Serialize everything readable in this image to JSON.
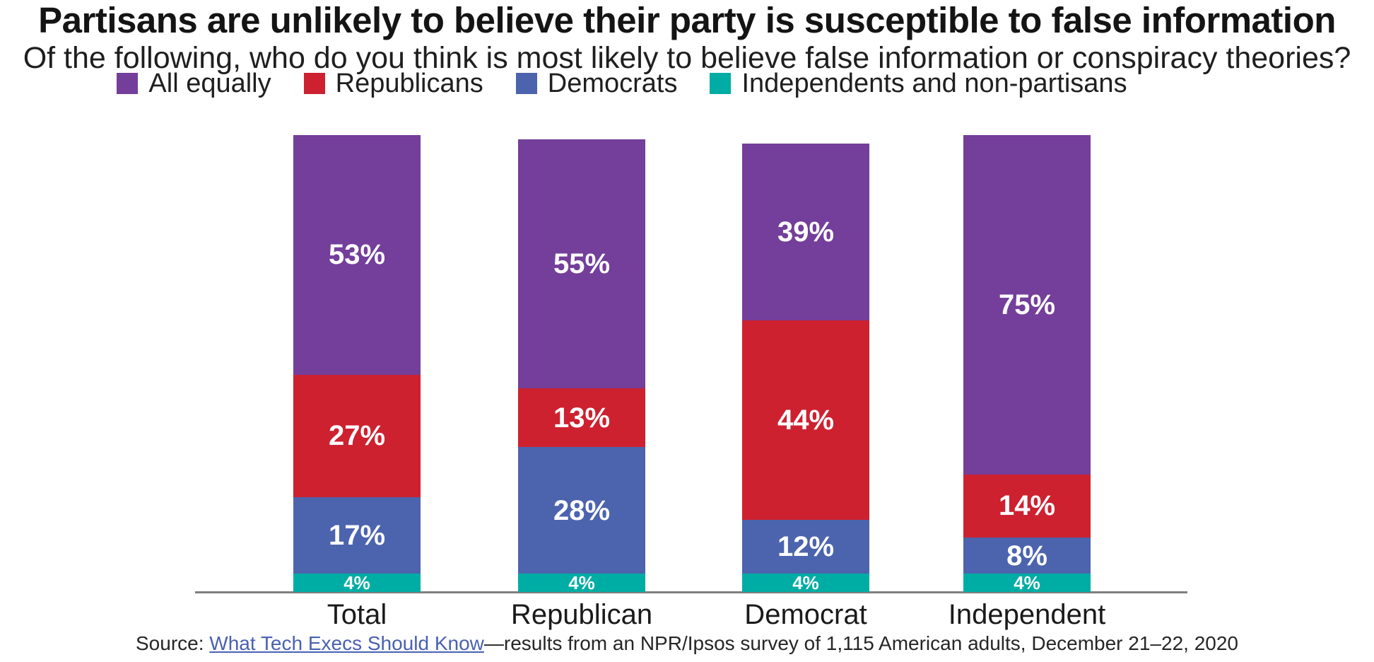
{
  "page": {
    "title": "Partisans are unlikely to believe their party is susceptible to false information",
    "subtitle": "Of the following, who do you think is most likely to believe false information or conspiracy theories?"
  },
  "legend": {
    "items": [
      {
        "label": "All equally",
        "color": "#743E9B"
      },
      {
        "label": "Republicans",
        "color": "#CD2130"
      },
      {
        "label": "Democrats",
        "color": "#4C64AE"
      },
      {
        "label": "Independents and non-partisans",
        "color": "#00ADA4"
      }
    ]
  },
  "chart_data": {
    "type": "bar",
    "stacked": true,
    "title": "Partisans are unlikely to believe their party is susceptible to false information",
    "subtitle": "Of the following, who do you think is most likely to believe false information or conspiracy theories?",
    "categories": [
      "Total",
      "Republican",
      "Democrat",
      "Independent"
    ],
    "series": [
      {
        "name": "All equally",
        "color": "#743E9B",
        "values": [
          53,
          55,
          39,
          75
        ]
      },
      {
        "name": "Republicans",
        "color": "#CD2130",
        "values": [
          27,
          13,
          44,
          14
        ]
      },
      {
        "name": "Democrats",
        "color": "#4C64AE",
        "values": [
          17,
          28,
          12,
          8
        ]
      },
      {
        "name": "Independents and non-partisans",
        "color": "#00ADA4",
        "values": [
          4,
          4,
          4,
          4
        ]
      }
    ],
    "value_label_format": "{v}%",
    "unit": "percent",
    "legend_position": "top",
    "grid": false,
    "axis": {
      "baseline_color": "#7F7F7F",
      "tick_labels": "categories_only"
    }
  },
  "source": {
    "prefix": "Source: ",
    "link_text": "What Tech Execs Should Know",
    "suffix": "—results from an NPR/Ipsos survey of 1,115 American adults, December 21–22, 2020",
    "link_color": "#4A61B2"
  }
}
